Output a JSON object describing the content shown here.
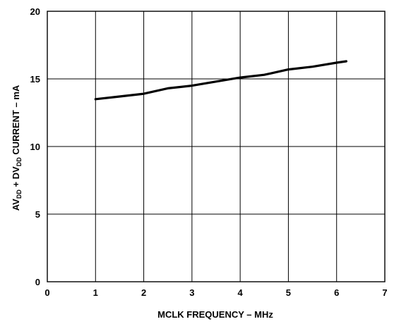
{
  "chart_data": {
    "type": "line",
    "title": "",
    "xlabel": "MCLK FREQUENCY – MHz",
    "ylabel": {
      "p1": "AV",
      "s1": "DD",
      "p2": " + DV",
      "s2": "DD",
      "p3": " CURRENT – mA"
    },
    "xlim": [
      0,
      7
    ],
    "ylim": [
      0,
      20
    ],
    "x_ticks": [
      "0",
      "1",
      "2",
      "3",
      "4",
      "5",
      "6",
      "7"
    ],
    "y_ticks": [
      "0",
      "5",
      "10",
      "15",
      "20"
    ],
    "grid": true,
    "legend": "none",
    "series": [
      {
        "x": [
          1.0,
          1.5,
          2.0,
          2.5,
          3.0,
          3.5,
          4.0,
          4.5,
          5.0,
          5.5,
          6.0,
          6.2
        ],
        "y": [
          13.5,
          13.7,
          13.9,
          14.3,
          14.5,
          14.8,
          15.1,
          15.3,
          15.7,
          15.9,
          16.2,
          16.3
        ]
      }
    ]
  }
}
